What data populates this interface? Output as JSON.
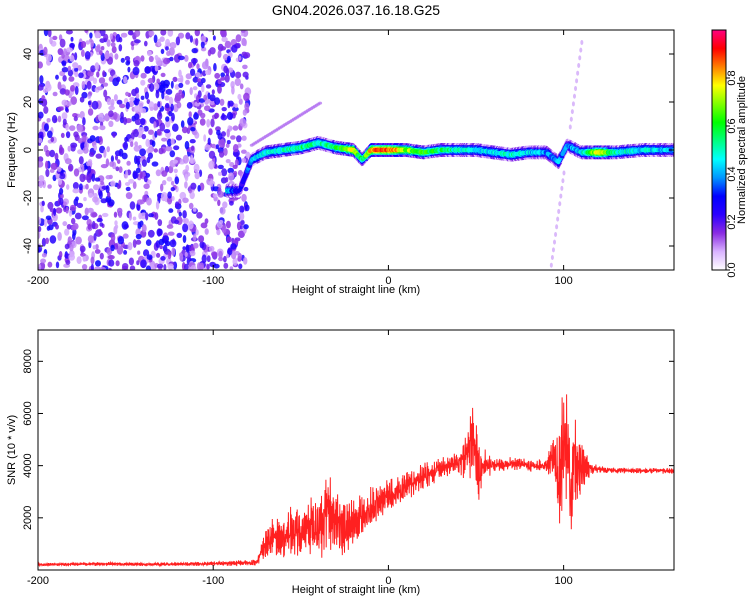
{
  "title": "GN04.2026.037.16.18.G25",
  "chart_data": [
    {
      "type": "heatmap",
      "name": "spectrogram",
      "xlabel": "Height of straight line (km)",
      "ylabel": "Frequency (Hz)",
      "xlim": [
        -200,
        163
      ],
      "ylim": [
        -50,
        50
      ],
      "xticks": [
        -200,
        -100,
        0,
        100
      ],
      "yticks": [
        -40,
        -20,
        0,
        20,
        40
      ],
      "colorbar": {
        "label": "Normalized spectral amplitude",
        "range": [
          0,
          1
        ],
        "ticks": [
          0.0,
          0.2,
          0.4,
          0.6,
          0.8
        ],
        "tick_labels": [
          "0.0",
          "0.2",
          "0.4",
          "0.6",
          "0.8"
        ],
        "colors": [
          "#ffffff",
          "#d9b3ff",
          "#8a2be2",
          "#2b00ff",
          "#0000ff",
          "#0096ff",
          "#00ffff",
          "#00ff80",
          "#00ff00",
          "#80ff00",
          "#ffff00",
          "#ff8000",
          "#ff0000",
          "#ff0080"
        ]
      },
      "noise_region_x": [
        -200,
        -80
      ],
      "ridge": [
        {
          "x": -92,
          "y": -17,
          "amp": 0.45
        },
        {
          "x": -85,
          "y": -17,
          "amp": 0.2
        },
        {
          "x": -78,
          "y": -4,
          "amp": 0.4
        },
        {
          "x": -70,
          "y": -1,
          "amp": 0.45
        },
        {
          "x": -60,
          "y": 0,
          "amp": 0.5
        },
        {
          "x": -50,
          "y": 1,
          "amp": 0.55
        },
        {
          "x": -40,
          "y": 3,
          "amp": 0.5
        },
        {
          "x": -30,
          "y": 1,
          "amp": 0.55
        },
        {
          "x": -20,
          "y": 0,
          "amp": 0.75
        },
        {
          "x": -15,
          "y": -4,
          "amp": 0.5
        },
        {
          "x": -10,
          "y": 0,
          "amp": 0.85
        },
        {
          "x": 0,
          "y": 0,
          "amp": 0.9
        },
        {
          "x": 10,
          "y": 0,
          "amp": 0.7
        },
        {
          "x": 20,
          "y": -1,
          "amp": 0.6
        },
        {
          "x": 30,
          "y": 0,
          "amp": 0.55
        },
        {
          "x": 40,
          "y": 0,
          "amp": 0.5
        },
        {
          "x": 50,
          "y": 0,
          "amp": 0.45
        },
        {
          "x": 60,
          "y": -1,
          "amp": 0.45
        },
        {
          "x": 70,
          "y": -2,
          "amp": 0.5
        },
        {
          "x": 80,
          "y": -1,
          "amp": 0.45
        },
        {
          "x": 90,
          "y": -1,
          "amp": 0.4
        },
        {
          "x": 97,
          "y": -5,
          "amp": 0.4
        },
        {
          "x": 102,
          "y": 2,
          "amp": 0.35
        },
        {
          "x": 110,
          "y": -1,
          "amp": 0.45
        },
        {
          "x": 120,
          "y": -1,
          "amp": 0.8
        },
        {
          "x": 130,
          "y": -1,
          "amp": 0.5
        },
        {
          "x": 145,
          "y": 0,
          "amp": 0.45
        },
        {
          "x": 163,
          "y": 0,
          "amp": 0.4
        }
      ]
    },
    {
      "type": "line",
      "name": "snr",
      "xlabel": "Height of straight line (km)",
      "ylabel": "SNR (10 * v/v)",
      "xlim": [
        -200,
        163
      ],
      "ylim": [
        0,
        9200
      ],
      "xticks": [
        -200,
        -100,
        0,
        100
      ],
      "yticks": [
        2000,
        4000,
        6000,
        8000
      ],
      "color": "#ff2020",
      "series": [
        {
          "name": "SNR",
          "x": [
            -200,
            -180,
            -160,
            -140,
            -120,
            -100,
            -85,
            -75,
            -70,
            -65,
            -60,
            -55,
            -50,
            -45,
            -40,
            -35,
            -30,
            -25,
            -20,
            -15,
            -10,
            -5,
            0,
            5,
            10,
            15,
            20,
            25,
            30,
            35,
            40,
            45,
            48,
            52,
            55,
            60,
            70,
            80,
            90,
            95,
            98,
            100,
            102,
            104,
            106,
            108,
            112,
            115,
            120,
            130,
            140,
            150,
            163
          ],
          "y": [
            200,
            220,
            230,
            220,
            230,
            240,
            260,
            300,
            1000,
            1300,
            1100,
            1600,
            1200,
            1800,
            1600,
            2200,
            1900,
            1700,
            1900,
            2100,
            2400,
            2600,
            2800,
            3000,
            3200,
            3400,
            3600,
            3700,
            3900,
            4000,
            4100,
            4300,
            5200,
            3600,
            4100,
            4000,
            4100,
            4000,
            4000,
            4400,
            3400,
            5200,
            4800,
            3000,
            4200,
            3700,
            4000,
            3900,
            3850,
            3820,
            3800,
            3800,
            3800
          ],
          "amplitude": [
            60,
            70,
            80,
            70,
            80,
            90,
            120,
            150,
            600,
            900,
            800,
            1100,
            900,
            1400,
            1200,
            1800,
            1400,
            1200,
            1000,
            900,
            900,
            800,
            700,
            700,
            600,
            600,
            500,
            500,
            450,
            400,
            500,
            1000,
            1600,
            1200,
            700,
            300,
            250,
            250,
            300,
            900,
            2000,
            3000,
            2500,
            2500,
            2000,
            1500,
            800,
            300,
            150,
            120,
            120,
            120,
            120
          ]
        }
      ]
    }
  ]
}
